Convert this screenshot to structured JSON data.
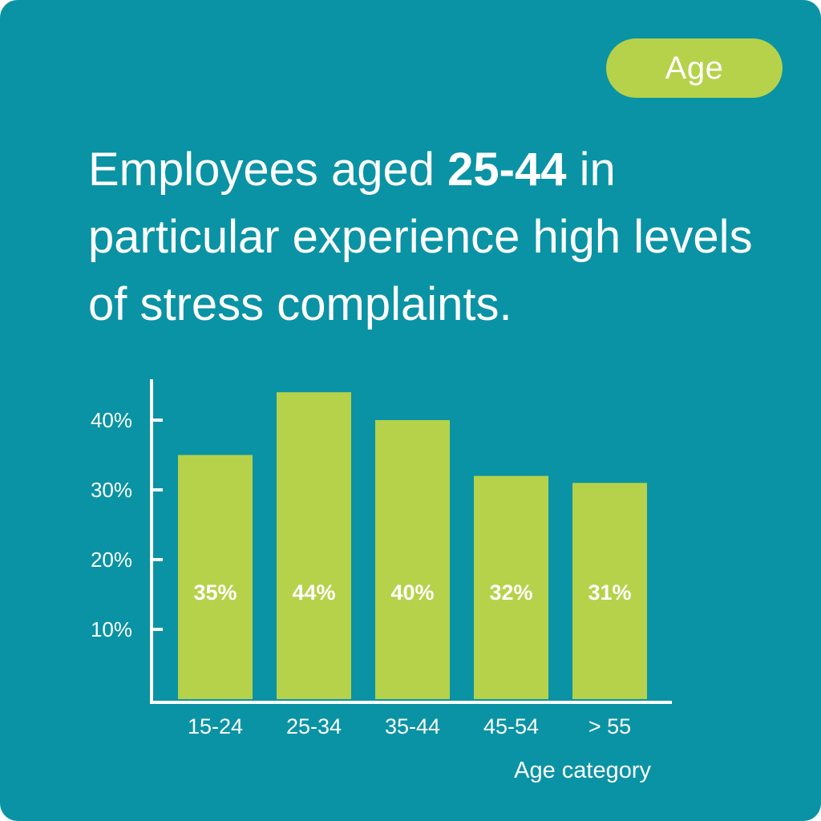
{
  "badge": {
    "label": "Age"
  },
  "headline": {
    "prefix": "Employees aged ",
    "emphasis": "25-44",
    "suffix": " in particular experience high levels of stress complaints."
  },
  "colors": {
    "background": "#0a93a4",
    "bar": "#b5d24a",
    "text": "#ffffff"
  },
  "chart_data": {
    "type": "bar",
    "categories": [
      "15-24",
      "25-34",
      "35-44",
      "45-54",
      "> 55"
    ],
    "values": [
      35,
      44,
      40,
      32,
      31
    ],
    "value_labels": [
      "35%",
      "44%",
      "40%",
      "32%",
      "31%"
    ],
    "yticks": [
      10,
      20,
      30,
      40
    ],
    "ytick_labels": [
      "10%",
      "20%",
      "30%",
      "40%"
    ],
    "xlabel": "Age category",
    "ylabel": "",
    "ylim": [
      0,
      45
    ],
    "grid": false
  }
}
